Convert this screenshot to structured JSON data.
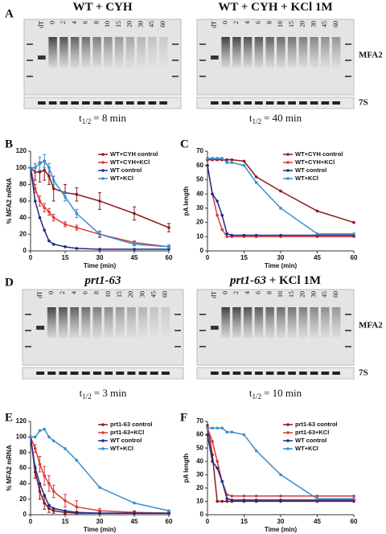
{
  "panels": {
    "a": "A",
    "b": "B",
    "c": "C",
    "d": "D",
    "e": "E",
    "f": "F"
  },
  "gel_labels": {
    "mfa2": "MFA2",
    "s7": "7S"
  },
  "gels": [
    {
      "title": "WT + CYH",
      "lanes": [
        "dT",
        "0",
        "2",
        "4",
        "6",
        "8",
        "10",
        "15",
        "20",
        "30",
        "45",
        "60"
      ],
      "t_half": {
        "t": "t",
        "sub": "1/2",
        "rest": "= 8 min"
      }
    },
    {
      "title": "WT + CYH + KCl 1M",
      "lanes": [
        "dT",
        "0",
        "2",
        "4",
        "6",
        "8",
        "10",
        "15",
        "20",
        "30",
        "45",
        "60"
      ],
      "t_half": {
        "t": "t",
        "sub": "1/2",
        "rest": "= 40 min"
      }
    },
    {
      "title": "prt1-63",
      "italic": true,
      "lanes": [
        "dT",
        "0",
        "2",
        "4",
        "6",
        "8",
        "10",
        "15",
        "20",
        "30",
        "45",
        "60"
      ],
      "t_half": {
        "t": "t",
        "sub": "1/2",
        "rest": "= 3 min"
      }
    },
    {
      "title": "prt1-63",
      "italic": true,
      "title_suffix": " + KCl 1M",
      "lanes": [
        "dT",
        "0",
        "2",
        "4",
        "6",
        "8",
        "10",
        "15",
        "20",
        "30",
        "45",
        "60"
      ],
      "t_half": {
        "t": "t",
        "sub": "1/2",
        "rest": "= 10 min"
      }
    }
  ],
  "chart_data": [
    {
      "type": "line",
      "ylabel": "% MFA2 mRNA",
      "xlabel": "Time (min)",
      "legend": "upper right",
      "x": [
        0,
        2,
        4,
        6,
        8,
        10,
        15,
        20,
        30,
        45,
        60
      ],
      "xlim": [
        0,
        60
      ],
      "xticks": [
        0,
        15,
        30,
        45,
        60
      ],
      "ylim": [
        0,
        120
      ],
      "yticks": [
        0,
        20,
        40,
        60,
        80,
        100,
        120
      ],
      "series": [
        {
          "name": "WT+CYH control",
          "color": "#8b1a1a",
          "values": [
            100,
            95,
            95,
            97,
            90,
            75,
            70,
            68,
            60,
            45,
            28
          ],
          "errors": [
            0,
            10,
            12,
            12,
            10,
            15,
            10,
            8,
            10,
            8,
            5
          ]
        },
        {
          "name": "WT+CYH+KCl",
          "color": "#d83a3a",
          "values": [
            100,
            75,
            60,
            52,
            47,
            40,
            32,
            28,
            20,
            10,
            5
          ],
          "errors": [
            0,
            5,
            6,
            5,
            4,
            4,
            3,
            3,
            3,
            2,
            2
          ]
        },
        {
          "name": "WT control",
          "color": "#1f2a8a",
          "values": [
            100,
            60,
            40,
            25,
            12,
            8,
            5,
            3,
            2,
            2,
            2
          ]
        },
        {
          "name": "WT+KCl",
          "color": "#3a8fd0",
          "values": [
            100,
            100,
            105,
            108,
            100,
            85,
            65,
            45,
            20,
            8,
            5
          ],
          "errors": [
            0,
            5,
            8,
            8,
            5,
            5,
            5,
            5,
            4,
            2,
            2
          ]
        }
      ]
    },
    {
      "type": "line",
      "ylabel": "pA length",
      "xlabel": "Time (min)",
      "legend": "upper right",
      "x": [
        0,
        2,
        4,
        6,
        8,
        10,
        15,
        20,
        30,
        45,
        60
      ],
      "xlim": [
        0,
        60
      ],
      "xticks": [
        0,
        15,
        30,
        45,
        60
      ],
      "ylim": [
        0,
        70
      ],
      "yticks": [
        0,
        10,
        20,
        30,
        40,
        50,
        60,
        70
      ],
      "series": [
        {
          "name": "WT+CYH control",
          "color": "#8b1a1a",
          "values": [
            64,
            64,
            64,
            64,
            64,
            64,
            63,
            52,
            42,
            28,
            20
          ]
        },
        {
          "name": "WT+CYH+KCl",
          "color": "#d83a3a",
          "values": [
            60,
            40,
            25,
            15,
            10,
            10,
            10,
            10,
            10,
            10,
            10
          ]
        },
        {
          "name": "WT control",
          "color": "#1f2a8a",
          "values": [
            60,
            40,
            35,
            25,
            12,
            11,
            11,
            11,
            11,
            11,
            11
          ]
        },
        {
          "name": "WT+KCl",
          "color": "#3a8fd0",
          "values": [
            65,
            65,
            65,
            65,
            62,
            62,
            60,
            48,
            30,
            12,
            12
          ]
        }
      ]
    },
    {
      "type": "line",
      "ylabel": "% MFA2 mRNA",
      "xlabel": "Time (min)",
      "legend": "upper right",
      "x": [
        0,
        2,
        4,
        6,
        8,
        10,
        15,
        20,
        30,
        45,
        60
      ],
      "xlim": [
        0,
        60
      ],
      "xticks": [
        0,
        15,
        30,
        45,
        60
      ],
      "ylim": [
        0,
        120
      ],
      "yticks": [
        0,
        20,
        40,
        60,
        80,
        100,
        120
      ],
      "series": [
        {
          "name": "prt1-63 control",
          "color": "#8b1a1a",
          "values": [
            100,
            55,
            30,
            15,
            8,
            5,
            3,
            2,
            2,
            2,
            2
          ],
          "errors": [
            0,
            8,
            10,
            8,
            5,
            3,
            2,
            2,
            2,
            2,
            2
          ]
        },
        {
          "name": "prt1-63+KCl",
          "color": "#d83a3a",
          "values": [
            100,
            85,
            65,
            50,
            40,
            30,
            18,
            10,
            5,
            3,
            2
          ],
          "errors": [
            0,
            5,
            10,
            12,
            10,
            8,
            8,
            8,
            3,
            2,
            2
          ]
        },
        {
          "name": "WT control",
          "color": "#1f2a8a",
          "values": [
            100,
            60,
            40,
            25,
            12,
            8,
            5,
            3,
            2,
            2,
            2
          ]
        },
        {
          "name": "WT+KCl",
          "color": "#3a8fd0",
          "values": [
            100,
            100,
            108,
            110,
            100,
            95,
            85,
            70,
            35,
            15,
            5
          ]
        }
      ]
    },
    {
      "type": "line",
      "ylabel": "pA length",
      "xlabel": "Time (min)",
      "legend": "upper right",
      "x": [
        0,
        2,
        4,
        6,
        8,
        10,
        15,
        20,
        30,
        45,
        60
      ],
      "xlim": [
        0,
        60
      ],
      "xticks": [
        0,
        15,
        30,
        45,
        60
      ],
      "ylim": [
        0,
        70
      ],
      "yticks": [
        0,
        10,
        20,
        30,
        40,
        50,
        60,
        70
      ],
      "series": [
        {
          "name": "prt1-63 control",
          "color": "#8b1a1a",
          "values": [
            67,
            45,
            10,
            10,
            10,
            10,
            10,
            10,
            10,
            10,
            10
          ]
        },
        {
          "name": "prt1-63+KCl",
          "color": "#d83a3a",
          "values": [
            65,
            55,
            40,
            25,
            15,
            14,
            14,
            14,
            14,
            14,
            14
          ]
        },
        {
          "name": "WT control",
          "color": "#1f2a8a",
          "values": [
            60,
            40,
            35,
            25,
            12,
            11,
            11,
            11,
            11,
            11,
            11
          ]
        },
        {
          "name": "WT+KCl",
          "color": "#3a8fd0",
          "values": [
            65,
            65,
            65,
            65,
            62,
            62,
            60,
            48,
            30,
            12,
            12
          ]
        }
      ]
    }
  ]
}
